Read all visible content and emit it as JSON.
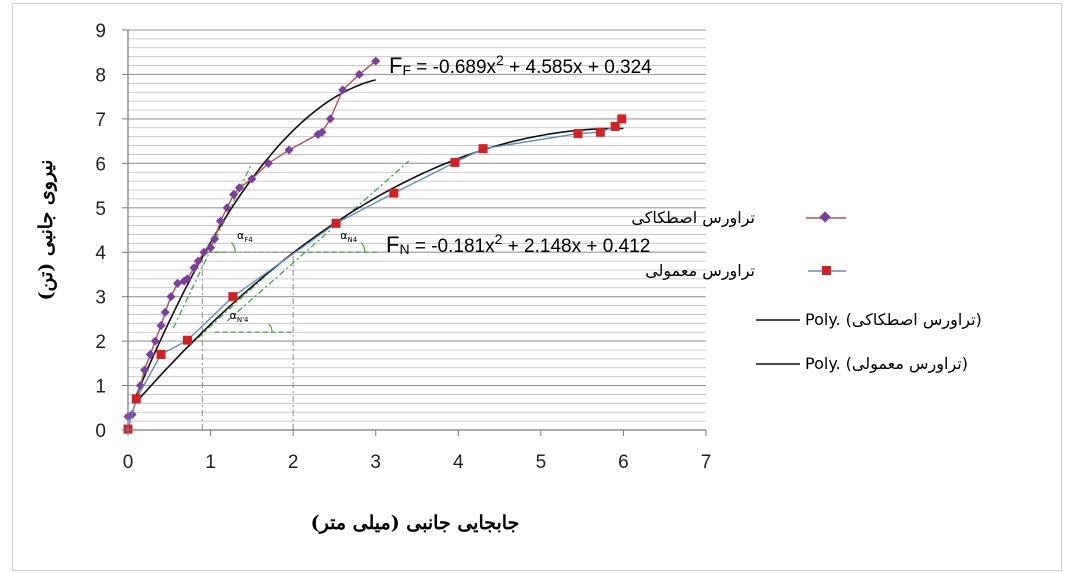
{
  "chart_data": {
    "type": "scatter",
    "xlabel": "جابجایی جانبی (میلی متر)",
    "ylabel": "نیروی جانبی (تن)",
    "xlim": [
      0,
      7
    ],
    "ylim": [
      0,
      9
    ],
    "x_ticks": [
      "0",
      "1",
      "2",
      "3",
      "4",
      "5",
      "6",
      "7"
    ],
    "y_ticks": [
      "0",
      "1",
      "2",
      "3",
      "4",
      "5",
      "6",
      "7",
      "8",
      "9"
    ],
    "grid": "horizontal",
    "legend": "right",
    "series": [
      {
        "name": "تراورس اصطکاکی",
        "marker": "diamond",
        "color": "#7a3fa0",
        "line_color": "#b5514a",
        "x": [
          0.0,
          0.05,
          0.1,
          0.15,
          0.2,
          0.27,
          0.33,
          0.4,
          0.45,
          0.52,
          0.6,
          0.68,
          0.72,
          0.8,
          0.85,
          0.92,
          1.0,
          1.05,
          1.12,
          1.2,
          1.28,
          1.35,
          1.5,
          1.7,
          1.95,
          2.3,
          2.35,
          2.45,
          2.6,
          2.8,
          3.0
        ],
        "y": [
          0.3,
          0.35,
          0.7,
          1.0,
          1.35,
          1.7,
          2.0,
          2.35,
          2.65,
          3.0,
          3.3,
          3.35,
          3.4,
          3.65,
          3.8,
          4.0,
          4.1,
          4.3,
          4.7,
          5.0,
          5.3,
          5.45,
          5.65,
          6.0,
          6.3,
          6.65,
          6.7,
          7.0,
          7.65,
          8.0,
          8.3
        ]
      },
      {
        "name": "تراورس معمولی",
        "marker": "square",
        "color": "#d42020",
        "line_color": "#5e8fc6",
        "x": [
          0.0,
          0.1,
          0.4,
          0.72,
          1.27,
          2.52,
          3.22,
          3.96,
          4.3,
          5.45,
          5.72,
          5.9,
          5.98
        ],
        "y": [
          0.02,
          0.7,
          1.7,
          2.02,
          3.0,
          4.65,
          5.33,
          6.02,
          6.33,
          6.67,
          6.7,
          6.83,
          7.0
        ]
      }
    ],
    "trendlines": [
      {
        "name": "Poly. (تراورس اصطکاکی)",
        "equation": "FF = -0.689x2 + 4.585x + 0.324",
        "eq_lead": "F",
        "eq_sub": "F",
        "eq_before_sup": " = -0.689x",
        "eq_sup": "2",
        "eq_after_sup": " + 4.585x + 0.324",
        "a": -0.689,
        "b": 4.585,
        "c": 0.324,
        "x_range": [
          0.1,
          3.0
        ],
        "color": "#111111"
      },
      {
        "name": "Poly. (تراورس معمولی)",
        "equation": "FN = -0.181x2 + 2.148x + 0.412",
        "eq_lead": "F",
        "eq_sub": "N",
        "eq_before_sup": " = -0.181x",
        "eq_sup": "2",
        "eq_after_sup": " + 2.148x + 0.412",
        "a": -0.181,
        "b": 2.148,
        "c": 0.412,
        "x_range": [
          0.1,
          6.0
        ],
        "color": "#111111"
      }
    ],
    "annotations": {
      "angle_labels": [
        {
          "text": "α",
          "sub": "F4",
          "x": 1.32,
          "y": 4.3
        },
        {
          "text": "α",
          "sub": "N4",
          "x": 2.57,
          "y": 4.3
        },
        {
          "text": "α",
          "sub": "N'4",
          "x": 1.23,
          "y": 2.5
        }
      ],
      "tangents": [
        {
          "x1": 0.55,
          "y1": 2.3,
          "x2": 1.5,
          "y2": 6.0,
          "color": "#3daa3d"
        },
        {
          "x1": 1.2,
          "y1": 2.45,
          "x2": 3.4,
          "y2": 6.05,
          "color": "#3daa3d"
        },
        {
          "x1": 0.6,
          "y1": 1.65,
          "x2": 1.8,
          "y2": 3.7,
          "color": "#3daa3d"
        }
      ],
      "hlines": [
        {
          "x1": 0.95,
          "x2": 1.18,
          "y": 4.0,
          "color": "#3daa3d"
        },
        {
          "x1": 2.08,
          "x2": 3.05,
          "y": 4.0,
          "color": "#3daa3d"
        },
        {
          "x1": 1.05,
          "x2": 2.0,
          "y": 2.2,
          "color": "#3daa3d"
        }
      ],
      "vlines": [
        {
          "x": 0.9,
          "y1": 0.0,
          "y2": 4.0,
          "color": "#8a8a8a"
        },
        {
          "x": 2.0,
          "y1": 0.0,
          "y2": 4.0,
          "color": "#8a8a8a"
        }
      ],
      "hgrey": [
        {
          "x1": 0.9,
          "x2": 2.0,
          "y": 4.0,
          "color": "#8a8a8a"
        }
      ]
    }
  }
}
